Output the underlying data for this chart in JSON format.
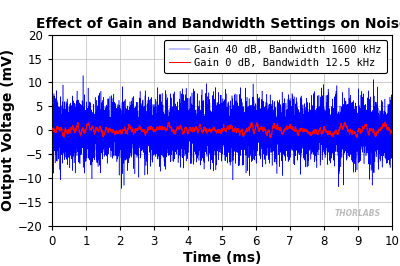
{
  "title": "Effect of Gain and Bandwidth Settings on Noise",
  "xlabel": "Time (ms)",
  "ylabel": "Output Voltage (mV)",
  "xlim": [
    0,
    10
  ],
  "ylim": [
    -20,
    20
  ],
  "xticks": [
    0,
    1,
    2,
    3,
    4,
    5,
    6,
    7,
    8,
    9,
    10
  ],
  "yticks": [
    -20,
    -15,
    -10,
    -5,
    0,
    5,
    10,
    15,
    20
  ],
  "blue_label": "Gain 40 dB, Bandwidth 1600 kHz",
  "red_label": "Gain 0 dB, Bandwidth 12.5 kHz",
  "blue_color": "#0000FF",
  "red_color": "#FF0000",
  "bg_color": "#FFFFFF",
  "plot_bg_color": "#FFFFFF",
  "grid_color": "#AAAAAA",
  "title_color": "#000000",
  "watermark": "THORLABS",
  "watermark_color": "#BBBBBB",
  "n_points_blue": 8000,
  "n_points_red": 8000,
  "blue_std": 3.2,
  "red_std": 0.8,
  "red_filter_window": 60,
  "red_scale": 0.55,
  "title_fontsize": 10,
  "label_fontsize": 10,
  "tick_fontsize": 8.5,
  "legend_fontsize": 7.5
}
